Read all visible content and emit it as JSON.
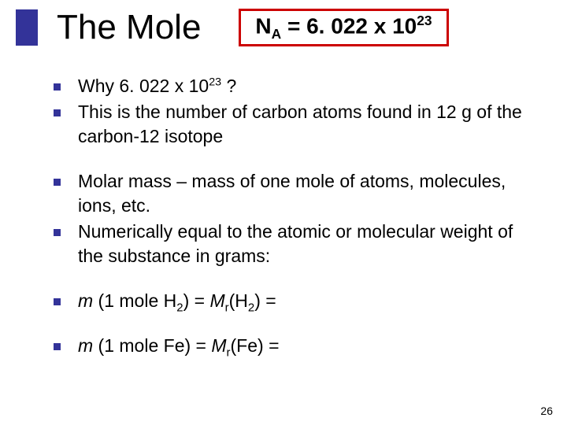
{
  "title": "The Mole",
  "formula": {
    "lhs_base": "N",
    "lhs_sub": "A",
    "eq": " = 6. 022 x 10",
    "exp": "23"
  },
  "bullets": {
    "b1": {
      "pre": "Why 6. 022 x 10",
      "sup": "23",
      "post": " ?"
    },
    "b2": "This is the number of carbon atoms found in 12 g of the carbon-12 isotope",
    "b3": "Molar mass – mass of one mole of atoms, molecules, ions, etc.",
    "b4": "Numerically equal to the atomic or molecular weight of the substance in grams:",
    "b5": {
      "m": "m",
      "p1": " (1 mole H",
      "sub1": "2",
      "p2": ") = ",
      "mr": "M",
      "rsub": "r",
      "p3": "(H",
      "sub2": "2",
      "p4": ") = "
    },
    "b6": {
      "m": "m",
      "p1": " (1 mole Fe) = ",
      "mr": "M",
      "rsub": "r",
      "p2": "(Fe) = "
    }
  },
  "colors": {
    "accent": "#333399",
    "box_border": "#cc0000",
    "text": "#000000",
    "background": "#ffffff"
  },
  "page_number": "26"
}
